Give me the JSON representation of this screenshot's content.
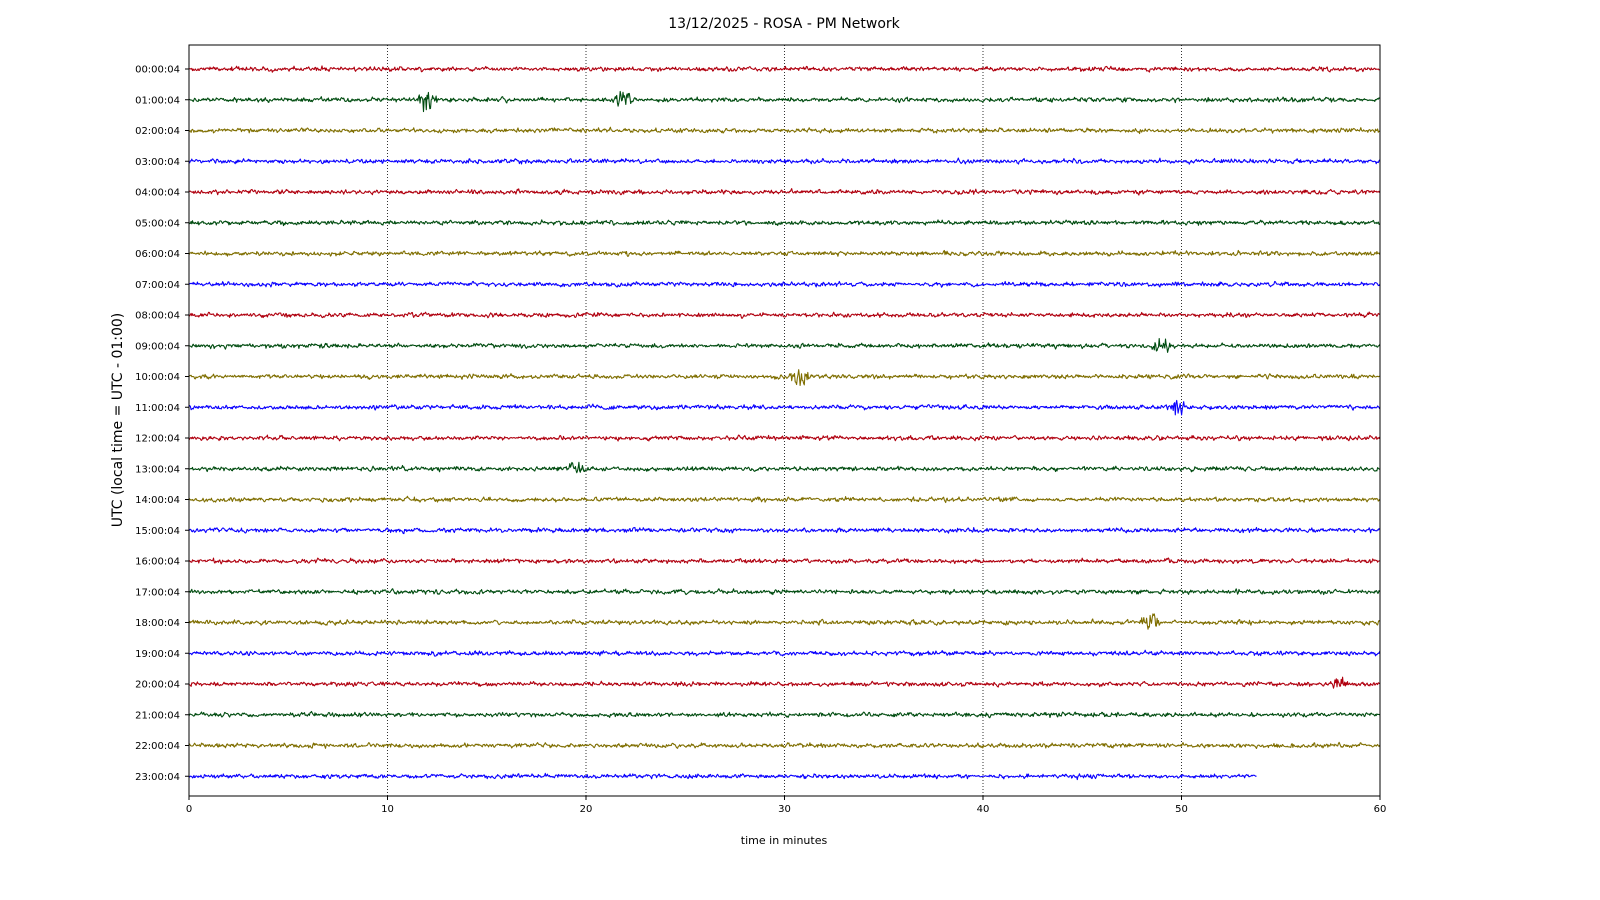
{
  "chart_data": {
    "type": "line",
    "title": "13/12/2025 - ROSA - PM Network",
    "xlabel": "time in minutes",
    "ylabel": "UTC (local time = UTC - 01:00)",
    "xlim": [
      0,
      60
    ],
    "xticks": [
      "0",
      "10",
      "20",
      "30",
      "40",
      "50",
      "60"
    ],
    "grid": "vertical dotted at 10-minute ticks",
    "colors": [
      "#b0000f",
      "#004c10",
      "#7f6e00",
      "#0a00ff"
    ],
    "series": [
      {
        "label": "00:00:04",
        "start": 0,
        "end": 60
      },
      {
        "label": "01:00:04",
        "start": 0,
        "end": 60
      },
      {
        "label": "02:00:04",
        "start": 0,
        "end": 60
      },
      {
        "label": "03:00:04",
        "start": 0,
        "end": 60
      },
      {
        "label": "04:00:04",
        "start": 0,
        "end": 60
      },
      {
        "label": "05:00:04",
        "start": 0,
        "end": 60
      },
      {
        "label": "06:00:04",
        "start": 0,
        "end": 60
      },
      {
        "label": "07:00:04",
        "start": 0,
        "end": 60
      },
      {
        "label": "08:00:04",
        "start": 0,
        "end": 60
      },
      {
        "label": "09:00:04",
        "start": 0,
        "end": 60
      },
      {
        "label": "10:00:04",
        "start": 0,
        "end": 60
      },
      {
        "label": "11:00:04",
        "start": 0,
        "end": 60
      },
      {
        "label": "12:00:04",
        "start": 0,
        "end": 60
      },
      {
        "label": "13:00:04",
        "start": 0,
        "end": 60
      },
      {
        "label": "14:00:04",
        "start": 0,
        "end": 60
      },
      {
        "label": "15:00:04",
        "start": 0,
        "end": 60
      },
      {
        "label": "16:00:04",
        "start": 0,
        "end": 60
      },
      {
        "label": "17:00:04",
        "start": 0,
        "end": 60
      },
      {
        "label": "18:00:04",
        "start": 0,
        "end": 60
      },
      {
        "label": "19:00:04",
        "start": 0,
        "end": 60
      },
      {
        "label": "20:00:04",
        "start": 0,
        "end": 60
      },
      {
        "label": "21:00:04",
        "start": 0,
        "end": 60
      },
      {
        "label": "22:00:04",
        "start": 0,
        "end": 60
      },
      {
        "label": "23:00:04",
        "start": 0,
        "end": 53.8
      }
    ],
    "events": [
      {
        "row": 1,
        "minute": 12.1,
        "amplitude": 2.2
      },
      {
        "row": 1,
        "minute": 21.8,
        "amplitude": 1.4
      },
      {
        "row": 9,
        "minute": 49.0,
        "amplitude": 1.3
      },
      {
        "row": 10,
        "minute": 30.8,
        "amplitude": 1.6
      },
      {
        "row": 11,
        "minute": 49.8,
        "amplitude": 1.3
      },
      {
        "row": 13,
        "minute": 19.5,
        "amplitude": 1.3
      },
      {
        "row": 18,
        "minute": 48.4,
        "amplitude": 1.8
      },
      {
        "row": 20,
        "minute": 58.0,
        "amplitude": 1.2
      }
    ]
  }
}
